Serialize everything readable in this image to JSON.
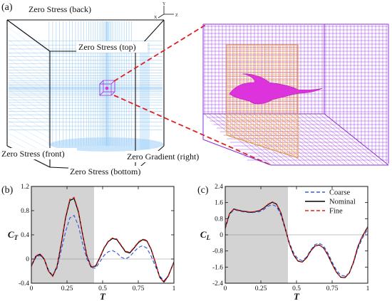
{
  "panel_a": {
    "label": "(a)",
    "bc_back": "Zero Stress (back)",
    "bc_top": "Zero Stress (top)",
    "bc_front": "Zero Stress (front)",
    "bc_right": "Zero Gradient (right)",
    "bc_bottom": "Zero Stress (bottom)",
    "triad_y": "Y",
    "triad_x": "X",
    "triad_z": "Z"
  },
  "panel_b": {
    "label": "(b)"
  },
  "panel_c": {
    "label": "(c)"
  },
  "colors": {
    "coarse": "#3b5bdb",
    "nominal": "#000000",
    "fine": "#e02020",
    "mesh": "#6fb6f0",
    "inner_box": "#a040e0",
    "plate": "#f3a850",
    "body": "#dd33dd",
    "shade": "#d3d3d3"
  },
  "chart_data": [
    {
      "type": "line",
      "panel": "(b)",
      "xlabel": "T",
      "ylabel": "C_T",
      "ylabel_main": "C",
      "ylabel_sub": "T",
      "xlim": [
        0,
        1
      ],
      "ylim": [
        -0.4,
        1.2
      ],
      "xticks": [
        0,
        0.25,
        0.5,
        0.75,
        1
      ],
      "yticks": [
        -0.4,
        0,
        0.4,
        0.8,
        1.2
      ],
      "xtick_labels": [
        "0",
        "0.25",
        "0.5",
        "0.75",
        "1"
      ],
      "ytick_labels": [
        "-0.4",
        "0",
        "0.4",
        "0.8",
        "1.2"
      ],
      "shaded_x": [
        0,
        0.44
      ],
      "series": [
        {
          "name": "Coarse",
          "style": "dashed",
          "color": "#3b5bdb",
          "x": [
            0,
            0.03,
            0.06,
            0.09,
            0.12,
            0.15,
            0.18,
            0.21,
            0.24,
            0.27,
            0.3,
            0.33,
            0.36,
            0.39,
            0.42,
            0.45,
            0.48,
            0.51,
            0.54,
            0.57,
            0.6,
            0.63,
            0.66,
            0.69,
            0.72,
            0.75,
            0.78,
            0.81,
            0.84,
            0.87,
            0.9,
            0.93,
            0.96,
            1.0
          ],
          "y": [
            -0.1,
            0.02,
            0.06,
            0.0,
            -0.18,
            -0.28,
            -0.15,
            0.15,
            0.45,
            0.68,
            0.72,
            0.55,
            0.25,
            0.0,
            -0.14,
            -0.15,
            -0.05,
            0.06,
            0.12,
            0.14,
            0.1,
            0.03,
            0.0,
            0.04,
            0.12,
            0.19,
            0.22,
            0.18,
            0.05,
            -0.12,
            -0.28,
            -0.36,
            -0.28,
            -0.05
          ]
        },
        {
          "name": "Nominal",
          "style": "solid",
          "color": "#000000",
          "x": [
            0,
            0.03,
            0.06,
            0.09,
            0.12,
            0.15,
            0.18,
            0.21,
            0.24,
            0.27,
            0.3,
            0.33,
            0.36,
            0.39,
            0.42,
            0.45,
            0.48,
            0.51,
            0.54,
            0.57,
            0.6,
            0.63,
            0.66,
            0.69,
            0.72,
            0.75,
            0.78,
            0.81,
            0.84,
            0.87,
            0.9,
            0.93,
            0.96,
            1.0
          ],
          "y": [
            -0.12,
            0.04,
            0.08,
            0.0,
            -0.2,
            -0.28,
            -0.12,
            0.25,
            0.68,
            0.97,
            1.0,
            0.78,
            0.4,
            0.05,
            -0.13,
            -0.12,
            0.02,
            0.18,
            0.29,
            0.34,
            0.32,
            0.22,
            0.12,
            0.1,
            0.18,
            0.27,
            0.32,
            0.3,
            0.16,
            -0.06,
            -0.3,
            -0.38,
            -0.28,
            -0.05
          ]
        },
        {
          "name": "Fine",
          "style": "dashed",
          "color": "#e02020",
          "x": [
            0,
            0.03,
            0.06,
            0.09,
            0.12,
            0.15,
            0.18,
            0.21,
            0.24,
            0.27,
            0.3,
            0.33,
            0.36,
            0.39,
            0.42,
            0.45,
            0.48,
            0.51,
            0.54,
            0.57,
            0.6,
            0.63,
            0.66,
            0.69,
            0.72,
            0.75,
            0.78,
            0.81,
            0.84,
            0.87,
            0.9,
            0.93,
            0.96,
            1.0
          ],
          "y": [
            -0.12,
            0.05,
            0.09,
            0.01,
            -0.2,
            -0.29,
            -0.12,
            0.27,
            0.7,
            0.99,
            1.02,
            0.8,
            0.41,
            0.05,
            -0.13,
            -0.11,
            0.03,
            0.19,
            0.3,
            0.35,
            0.33,
            0.23,
            0.13,
            0.11,
            0.19,
            0.28,
            0.33,
            0.31,
            0.17,
            -0.05,
            -0.3,
            -0.39,
            -0.29,
            -0.05
          ]
        }
      ]
    },
    {
      "type": "line",
      "panel": "(c)",
      "xlabel": "T",
      "ylabel": "C_L",
      "ylabel_main": "C",
      "ylabel_sub": "L",
      "xlim": [
        0,
        1
      ],
      "ylim": [
        -2.4,
        2.4
      ],
      "xticks": [
        0,
        0.25,
        0.5,
        0.75,
        1
      ],
      "yticks": [
        -2.4,
        -1.6,
        -0.8,
        0,
        0.8,
        1.6,
        2.4
      ],
      "xtick_labels": [
        "0",
        "0.25",
        "0.5",
        "0.75",
        "1"
      ],
      "ytick_labels": [
        "-2.4",
        "-1.6",
        "-0.8",
        "0",
        "0.8",
        "1.6",
        "2.4"
      ],
      "shaded_x": [
        0,
        0.44
      ],
      "legend_position": "top-right",
      "series": [
        {
          "name": "Coarse",
          "style": "dashed",
          "color": "#3b5bdb",
          "x": [
            0,
            0.03,
            0.06,
            0.09,
            0.12,
            0.15,
            0.18,
            0.21,
            0.24,
            0.27,
            0.3,
            0.33,
            0.36,
            0.39,
            0.42,
            0.45,
            0.48,
            0.51,
            0.54,
            0.57,
            0.6,
            0.63,
            0.66,
            0.69,
            0.72,
            0.75,
            0.78,
            0.81,
            0.84,
            0.87,
            0.9,
            0.93,
            0.96,
            1.0
          ],
          "y": [
            0.3,
            1.0,
            1.25,
            1.2,
            1.15,
            1.12,
            1.1,
            1.12,
            1.15,
            1.25,
            1.42,
            1.5,
            1.4,
            1.0,
            0.3,
            -0.4,
            -0.9,
            -1.2,
            -1.28,
            -1.1,
            -0.75,
            -0.48,
            -0.42,
            -0.55,
            -0.9,
            -1.35,
            -1.75,
            -2.0,
            -2.05,
            -1.9,
            -1.4,
            -0.7,
            -0.2,
            0.3
          ]
        },
        {
          "name": "Nominal",
          "style": "solid",
          "color": "#000000",
          "x": [
            0,
            0.03,
            0.06,
            0.09,
            0.12,
            0.15,
            0.18,
            0.21,
            0.24,
            0.27,
            0.3,
            0.33,
            0.36,
            0.39,
            0.42,
            0.45,
            0.48,
            0.51,
            0.54,
            0.57,
            0.6,
            0.63,
            0.66,
            0.69,
            0.72,
            0.75,
            0.78,
            0.81,
            0.84,
            0.87,
            0.9,
            0.93,
            0.96,
            1.0
          ],
          "y": [
            0.35,
            1.05,
            1.28,
            1.22,
            1.18,
            1.15,
            1.12,
            1.15,
            1.2,
            1.32,
            1.5,
            1.62,
            1.52,
            1.1,
            0.35,
            -0.45,
            -1.0,
            -1.3,
            -1.35,
            -1.15,
            -0.8,
            -0.55,
            -0.5,
            -0.65,
            -1.0,
            -1.45,
            -1.85,
            -2.1,
            -2.12,
            -1.9,
            -1.35,
            -0.6,
            -0.1,
            0.4
          ]
        },
        {
          "name": "Fine",
          "style": "dashed",
          "color": "#e02020",
          "x": [
            0,
            0.03,
            0.06,
            0.09,
            0.12,
            0.15,
            0.18,
            0.21,
            0.24,
            0.27,
            0.3,
            0.33,
            0.36,
            0.39,
            0.42,
            0.45,
            0.48,
            0.51,
            0.54,
            0.57,
            0.6,
            0.63,
            0.66,
            0.69,
            0.72,
            0.75,
            0.78,
            0.81,
            0.84,
            0.87,
            0.9,
            0.93,
            0.96,
            1.0
          ],
          "y": [
            0.36,
            1.06,
            1.29,
            1.23,
            1.19,
            1.16,
            1.13,
            1.16,
            1.21,
            1.34,
            1.52,
            1.64,
            1.54,
            1.12,
            0.36,
            -0.46,
            -1.01,
            -1.31,
            -1.36,
            -1.16,
            -0.81,
            -0.56,
            -0.51,
            -0.66,
            -1.01,
            -1.46,
            -1.86,
            -2.11,
            -2.13,
            -1.9,
            -1.34,
            -0.59,
            -0.09,
            0.41
          ]
        }
      ]
    }
  ]
}
